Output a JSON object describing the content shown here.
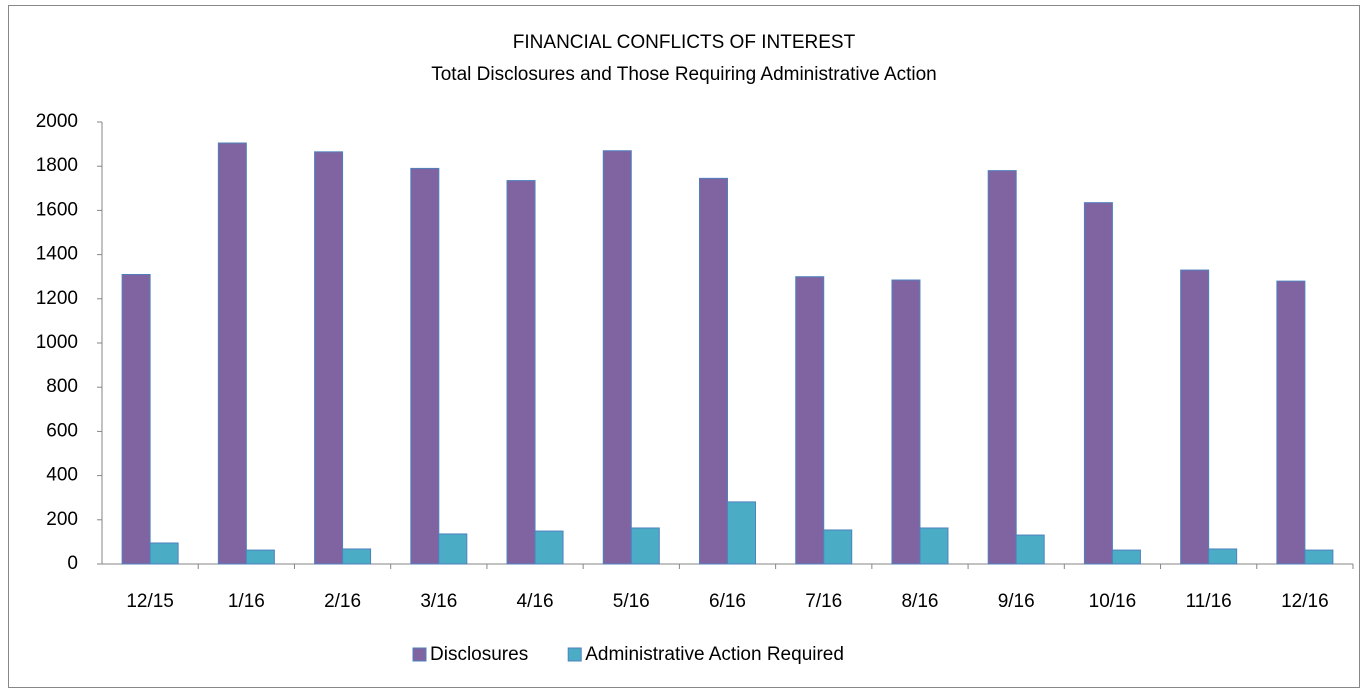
{
  "chart_data": {
    "type": "bar",
    "title": "FINANCIAL CONFLICTS OF INTEREST",
    "subtitle": "Total Disclosures and Those Requiring Administrative Action",
    "categories": [
      "12/15",
      "1/16",
      "2/16",
      "3/16",
      "4/16",
      "5/16",
      "6/16",
      "7/16",
      "8/16",
      "9/16",
      "10/16",
      "11/16",
      "12/16"
    ],
    "series": [
      {
        "name": "Disclosures",
        "color": "#8064a2",
        "values": [
          1310,
          1905,
          1865,
          1790,
          1735,
          1870,
          1745,
          1300,
          1285,
          1780,
          1635,
          1330,
          1280
        ]
      },
      {
        "name": "Administrative Action Required",
        "color": "#4bacc6",
        "values": [
          95,
          63,
          68,
          136,
          149,
          163,
          281,
          154,
          163,
          131,
          63,
          68,
          63
        ]
      }
    ],
    "ylim": [
      0,
      2000
    ],
    "yticks": [
      0,
      200,
      400,
      600,
      800,
      1000,
      1200,
      1400,
      1600,
      1800,
      2000
    ],
    "legend": "bottom"
  }
}
